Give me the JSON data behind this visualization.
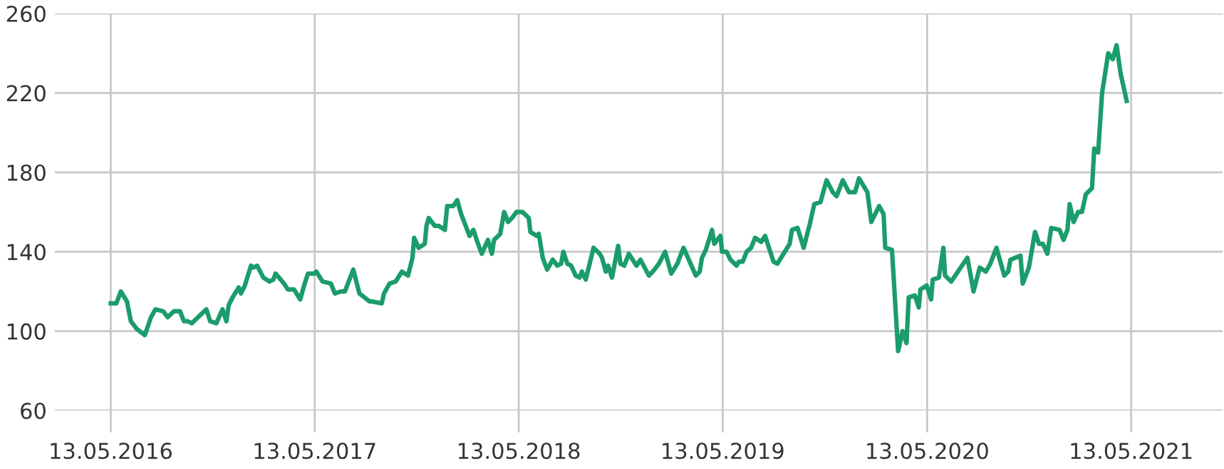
{
  "chart_data": {
    "type": "line",
    "x": [
      "2016-05-13",
      "2016-05-23",
      "2016-05-31",
      "2016-06-11",
      "2016-06-18",
      "2016-06-29",
      "2016-07-13",
      "2016-07-24",
      "2016-08-01",
      "2016-08-15",
      "2016-08-23",
      "2016-09-03",
      "2016-09-14",
      "2016-09-21",
      "2016-09-28",
      "2016-10-05",
      "2016-10-20",
      "2016-10-31",
      "2016-11-07",
      "2016-11-18",
      "2016-11-29",
      "2016-12-06",
      "2016-12-10",
      "2016-12-17",
      "2016-12-28",
      "2017-01-01",
      "2017-01-08",
      "2017-01-19",
      "2017-01-23",
      "2017-01-30",
      "2017-02-10",
      "2017-02-21",
      "2017-02-28",
      "2017-03-04",
      "2017-03-19",
      "2017-03-26",
      "2017-04-06",
      "2017-04-17",
      "2017-04-24",
      "2017-05-01",
      "2017-05-12",
      "2017-05-16",
      "2017-05-27",
      "2017-06-11",
      "2017-06-18",
      "2017-06-29",
      "2017-07-06",
      "2017-07-21",
      "2017-08-01",
      "2017-08-19",
      "2017-08-23",
      "2017-09-10",
      "2017-09-14",
      "2017-09-24",
      "2017-10-05",
      "2017-10-16",
      "2017-10-27",
      "2017-11-04",
      "2017-11-07",
      "2017-11-15",
      "2017-11-26",
      "2017-11-29",
      "2017-12-03",
      "2017-12-14",
      "2017-12-21",
      "2018-01-01",
      "2018-01-05",
      "2018-01-16",
      "2018-01-23",
      "2018-01-30",
      "2018-02-10",
      "2018-02-14",
      "2018-02-21",
      "2018-02-28",
      "2018-03-08",
      "2018-03-19",
      "2018-03-26",
      "2018-03-30",
      "2018-04-10",
      "2018-04-17",
      "2018-04-24",
      "2018-05-01",
      "2018-05-09",
      "2018-05-20",
      "2018-05-31",
      "2018-06-03",
      "2018-06-14",
      "2018-06-18",
      "2018-06-25",
      "2018-07-03",
      "2018-07-13",
      "2018-07-21",
      "2018-07-28",
      "2018-08-01",
      "2018-08-08",
      "2018-08-15",
      "2018-08-23",
      "2018-08-30",
      "2018-09-03",
      "2018-09-10",
      "2018-09-24",
      "2018-10-05",
      "2018-10-09",
      "2018-10-16",
      "2018-10-20",
      "2018-10-27",
      "2018-11-07",
      "2018-11-11",
      "2018-11-18",
      "2018-11-26",
      "2018-12-10",
      "2018-12-17",
      "2019-01-01",
      "2019-01-08",
      "2019-01-19",
      "2019-01-30",
      "2019-02-10",
      "2019-02-21",
      "2019-03-04",
      "2019-03-15",
      "2019-03-26",
      "2019-04-02",
      "2019-04-06",
      "2019-04-13",
      "2019-04-24",
      "2019-04-28",
      "2019-05-09",
      "2019-05-12",
      "2019-05-20",
      "2019-05-27",
      "2019-06-07",
      "2019-06-11",
      "2019-06-18",
      "2019-06-25",
      "2019-07-03",
      "2019-07-10",
      "2019-07-21",
      "2019-07-28",
      "2019-08-12",
      "2019-08-19",
      "2019-08-30",
      "2019-09-10",
      "2019-09-14",
      "2019-09-24",
      "2019-10-05",
      "2019-10-16",
      "2019-10-24",
      "2019-11-04",
      "2019-11-15",
      "2019-11-26",
      "2019-12-03",
      "2019-12-14",
      "2019-12-25",
      "2020-01-05",
      "2020-01-12",
      "2020-01-27",
      "2020-02-03",
      "2020-02-17",
      "2020-02-25",
      "2020-02-28",
      "2020-03-11",
      "2020-03-22",
      "2020-03-30",
      "2020-04-06",
      "2020-04-10",
      "2020-04-21",
      "2020-04-28",
      "2020-05-01",
      "2020-05-12",
      "2020-05-20",
      "2020-05-23",
      "2020-06-03",
      "2020-06-11",
      "2020-06-14",
      "2020-06-25",
      "2020-07-24",
      "2020-08-04",
      "2020-08-15",
      "2020-08-26",
      "2020-09-03",
      "2020-09-14",
      "2020-09-28",
      "2020-10-05",
      "2020-10-09",
      "2020-10-27",
      "2020-10-31",
      "2020-11-11",
      "2020-11-22",
      "2020-11-29",
      "2020-12-06",
      "2020-12-14",
      "2020-12-21",
      "2021-01-05",
      "2021-01-12",
      "2021-01-19",
      "2021-01-23",
      "2021-01-30",
      "2021-02-07",
      "2021-02-14",
      "2021-02-21",
      "2021-03-04",
      "2021-03-08",
      "2021-03-15",
      "2021-03-22",
      "2021-04-02",
      "2021-04-10",
      "2021-04-17",
      "2021-04-24",
      "2021-05-05"
    ],
    "series": [
      {
        "color": "#1b9c6b",
        "values": [
          114,
          114,
          120,
          115,
          105,
          101,
          98,
          107,
          111,
          110,
          107,
          110,
          110,
          105,
          105,
          104,
          108,
          111,
          105,
          104,
          111,
          105,
          113,
          117,
          122,
          119,
          123,
          133,
          132,
          133,
          127,
          125,
          126,
          129,
          124,
          121,
          121,
          116,
          123,
          129,
          129,
          130,
          125,
          124,
          119,
          120,
          120,
          131,
          119,
          115,
          115,
          114,
          119,
          124,
          125,
          130,
          128,
          137,
          147,
          142,
          144,
          153,
          157,
          153,
          153,
          151,
          163,
          163,
          166,
          159,
          151,
          148,
          151,
          145,
          139,
          146,
          139,
          146,
          149,
          160,
          155,
          157,
          160,
          160,
          157,
          150,
          148,
          149,
          137,
          131,
          136,
          133,
          134,
          140,
          134,
          133,
          128,
          127,
          130,
          126,
          142,
          139,
          137,
          130,
          133,
          127,
          143,
          134,
          133,
          139,
          133,
          136,
          128,
          130,
          134,
          140,
          129,
          134,
          142,
          135,
          128,
          130,
          137,
          141,
          151,
          144,
          148,
          140,
          140,
          136,
          133,
          135,
          135,
          140,
          142,
          147,
          145,
          148,
          135,
          134,
          139,
          144,
          151,
          152,
          142,
          154,
          164,
          165,
          176,
          170,
          168,
          176,
          170,
          170,
          177,
          170,
          155,
          163,
          159,
          142,
          141,
          90,
          100,
          94,
          117,
          118,
          112,
          121,
          123,
          116,
          126,
          127,
          142,
          128,
          125,
          137,
          120,
          132,
          130,
          134,
          142,
          128,
          130,
          136,
          138,
          124,
          132,
          150,
          144,
          144,
          139,
          152,
          151,
          146,
          151,
          164,
          155,
          160,
          160,
          169,
          172,
          192,
          190,
          220,
          240,
          237,
          244,
          230,
          216
        ]
      }
    ],
    "xlim": [
      "2016-02-03",
      "2021-10-24"
    ],
    "ylim": [
      60,
      260
    ],
    "xticks": [
      {
        "value": "2016-05-13",
        "label": "13.05.2016"
      },
      {
        "value": "2017-05-13",
        "label": "13.05.2017"
      },
      {
        "value": "2018-05-13",
        "label": "13.05.2018"
      },
      {
        "value": "2019-05-13",
        "label": "13.05.2019"
      },
      {
        "value": "2020-05-13",
        "label": "13.05.2020"
      },
      {
        "value": "2021-05-13",
        "label": "13.05.2021"
      }
    ],
    "yticks": [
      60,
      100,
      140,
      180,
      220,
      260
    ],
    "grid": true,
    "marker": "none",
    "line_style": "solid",
    "legend": false
  }
}
